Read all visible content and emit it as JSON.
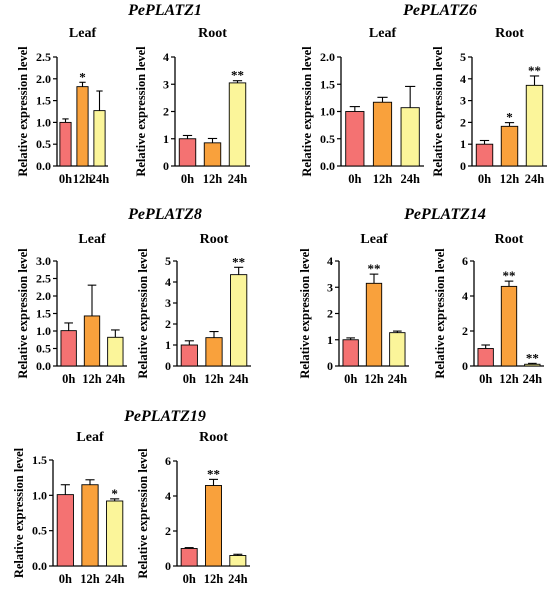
{
  "colors": {
    "bar0": "#f47272",
    "bar1": "#f9a13c",
    "bar2": "#fbf59a",
    "axis": "#000000"
  },
  "chart_data": [
    {
      "type": "bar",
      "gene": "PePLATZ1",
      "panels": [
        {
          "tissue": "Leaf",
          "ylabel": "Relative expression level",
          "categories": [
            "0h",
            "12h",
            "24h"
          ],
          "values": [
            1.0,
            1.82,
            1.27
          ],
          "errors": [
            0.08,
            0.1,
            0.45
          ],
          "significance": [
            "",
            "*",
            ""
          ],
          "ylim": [
            0,
            2.5
          ],
          "yticks": [
            "0.0",
            "0.5",
            "1.0",
            "1.5",
            "2.0",
            "2.5"
          ]
        },
        {
          "tissue": "Root",
          "ylabel": "Relative expression level",
          "categories": [
            "0h",
            "12h",
            "24h"
          ],
          "values": [
            1.0,
            0.85,
            3.05
          ],
          "errors": [
            0.12,
            0.16,
            0.08
          ],
          "significance": [
            "",
            "",
            "**"
          ],
          "ylim": [
            0,
            4
          ],
          "yticks": [
            "0",
            "1",
            "2",
            "3",
            "4"
          ]
        }
      ]
    },
    {
      "type": "bar",
      "gene": "PePLATZ6",
      "panels": [
        {
          "tissue": "Leaf",
          "ylabel": "Relative expression level",
          "categories": [
            "0h",
            "12h",
            "24h"
          ],
          "values": [
            1.0,
            1.17,
            1.07
          ],
          "errors": [
            0.09,
            0.09,
            0.39
          ],
          "significance": [
            "",
            "",
            ""
          ],
          "ylim": [
            0,
            2.0
          ],
          "yticks": [
            "0.0",
            "0.5",
            "1.0",
            "1.5",
            "2.0"
          ]
        },
        {
          "tissue": "Root",
          "ylabel": "Relative expression level",
          "categories": [
            "0h",
            "12h",
            "24h"
          ],
          "values": [
            1.0,
            1.82,
            3.7
          ],
          "errors": [
            0.17,
            0.17,
            0.43
          ],
          "significance": [
            "",
            "*",
            "**"
          ],
          "ylim": [
            0,
            5
          ],
          "yticks": [
            "0",
            "1",
            "2",
            "3",
            "4",
            "5"
          ]
        }
      ]
    },
    {
      "type": "bar",
      "gene": "PePLATZ8",
      "panels": [
        {
          "tissue": "Leaf",
          "ylabel": "Relative expression level",
          "categories": [
            "0h",
            "12h",
            "24h"
          ],
          "values": [
            1.01,
            1.43,
            0.82
          ],
          "errors": [
            0.22,
            0.88,
            0.21
          ],
          "significance": [
            "",
            "",
            ""
          ],
          "ylim": [
            0,
            3.0
          ],
          "yticks": [
            "0.0",
            "0.5",
            "1.0",
            "1.5",
            "2.0",
            "2.5",
            "3.0"
          ]
        },
        {
          "tissue": "Root",
          "ylabel": "Relative expression level",
          "categories": [
            "0h",
            "12h",
            "24h"
          ],
          "values": [
            1.0,
            1.35,
            4.35
          ],
          "errors": [
            0.2,
            0.29,
            0.35
          ],
          "significance": [
            "",
            "",
            "**"
          ],
          "ylim": [
            0,
            5
          ],
          "yticks": [
            "0",
            "1",
            "2",
            "3",
            "4",
            "5"
          ]
        }
      ]
    },
    {
      "type": "bar",
      "gene": "PePLATZ14",
      "panels": [
        {
          "tissue": "Leaf",
          "ylabel": "Relative expression level",
          "categories": [
            "0h",
            "12h",
            "24h"
          ],
          "values": [
            1.0,
            3.15,
            1.27
          ],
          "errors": [
            0.07,
            0.35,
            0.06
          ],
          "significance": [
            "",
            "**",
            ""
          ],
          "ylim": [
            0,
            4
          ],
          "yticks": [
            "0",
            "1",
            "2",
            "3",
            "4"
          ]
        },
        {
          "tissue": "Root",
          "ylabel": "Relative expression level",
          "categories": [
            "0h",
            "12h",
            "24h"
          ],
          "values": [
            1.0,
            4.55,
            0.1
          ],
          "errors": [
            0.2,
            0.3,
            0.05
          ],
          "significance": [
            "",
            "**",
            "**"
          ],
          "ylim": [
            0,
            6
          ],
          "yticks": [
            "0",
            "2",
            "4",
            "6"
          ]
        }
      ]
    },
    {
      "type": "bar",
      "gene": "PePLATZ19",
      "panels": [
        {
          "tissue": "Leaf",
          "ylabel": "Relative expression level",
          "categories": [
            "0h",
            "12h",
            "24h"
          ],
          "values": [
            1.01,
            1.15,
            0.92
          ],
          "errors": [
            0.14,
            0.07,
            0.03
          ],
          "significance": [
            "",
            "",
            "*"
          ],
          "ylim": [
            0,
            1.5
          ],
          "yticks": [
            "0.0",
            "0.5",
            "1.0",
            "1.5"
          ]
        },
        {
          "tissue": "Root",
          "ylabel": "Relative expression level",
          "categories": [
            "0h",
            "12h",
            "24h"
          ],
          "values": [
            1.0,
            4.6,
            0.6
          ],
          "errors": [
            0.05,
            0.35,
            0.07
          ],
          "significance": [
            "",
            "**",
            ""
          ],
          "ylim": [
            0,
            6
          ],
          "yticks": [
            "0",
            "2",
            "4",
            "6"
          ]
        }
      ]
    }
  ]
}
